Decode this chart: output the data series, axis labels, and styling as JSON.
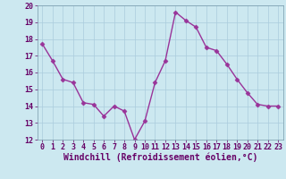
{
  "x": [
    0,
    1,
    2,
    3,
    4,
    5,
    6,
    7,
    8,
    9,
    10,
    11,
    12,
    13,
    14,
    15,
    16,
    17,
    18,
    19,
    20,
    21,
    22,
    23
  ],
  "y": [
    17.7,
    16.7,
    15.6,
    15.4,
    14.2,
    14.1,
    13.4,
    14.0,
    13.7,
    12.0,
    13.1,
    15.4,
    16.7,
    19.6,
    19.1,
    18.7,
    17.5,
    17.3,
    16.5,
    15.6,
    14.8,
    14.1,
    14.0,
    14.0
  ],
  "line_color": "#993399",
  "marker": "D",
  "markersize": 2.5,
  "linewidth": 1,
  "ylim": [
    12,
    20
  ],
  "xlim": [
    -0.5,
    23.5
  ],
  "yticks": [
    12,
    13,
    14,
    15,
    16,
    17,
    18,
    19,
    20
  ],
  "xticks": [
    0,
    1,
    2,
    3,
    4,
    5,
    6,
    7,
    8,
    9,
    10,
    11,
    12,
    13,
    14,
    15,
    16,
    17,
    18,
    19,
    20,
    21,
    22,
    23
  ],
  "xlabel": "Windchill (Refroidissement éolien,°C)",
  "xlabel_fontsize": 7,
  "tick_fontsize": 6,
  "background_color": "#cce8f0",
  "grid_color": "#aaccdd",
  "spine_color": "#7799aa"
}
